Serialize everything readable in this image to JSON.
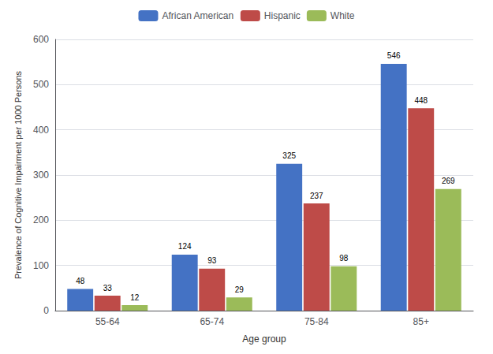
{
  "chart_data": {
    "type": "bar",
    "categories": [
      "55-64",
      "65-74",
      "75-84",
      "85+"
    ],
    "series": [
      {
        "name": "African American",
        "color": "#4472C4",
        "values": [
          48,
          124,
          325,
          546
        ]
      },
      {
        "name": "Hispanic",
        "color": "#BE4B48",
        "values": [
          33,
          93,
          237,
          448
        ]
      },
      {
        "name": "White",
        "color": "#9BBB59",
        "values": [
          12,
          29,
          98,
          269
        ]
      }
    ],
    "xlabel": "Age group",
    "ylabel": "Prevalence of Cognitive Impairment per 1000 Persons",
    "ylim": [
      0,
      600
    ],
    "yticks": [
      0,
      100,
      200,
      300,
      400,
      500,
      600
    ],
    "grid": true,
    "legend": "top",
    "data_labels": true
  }
}
